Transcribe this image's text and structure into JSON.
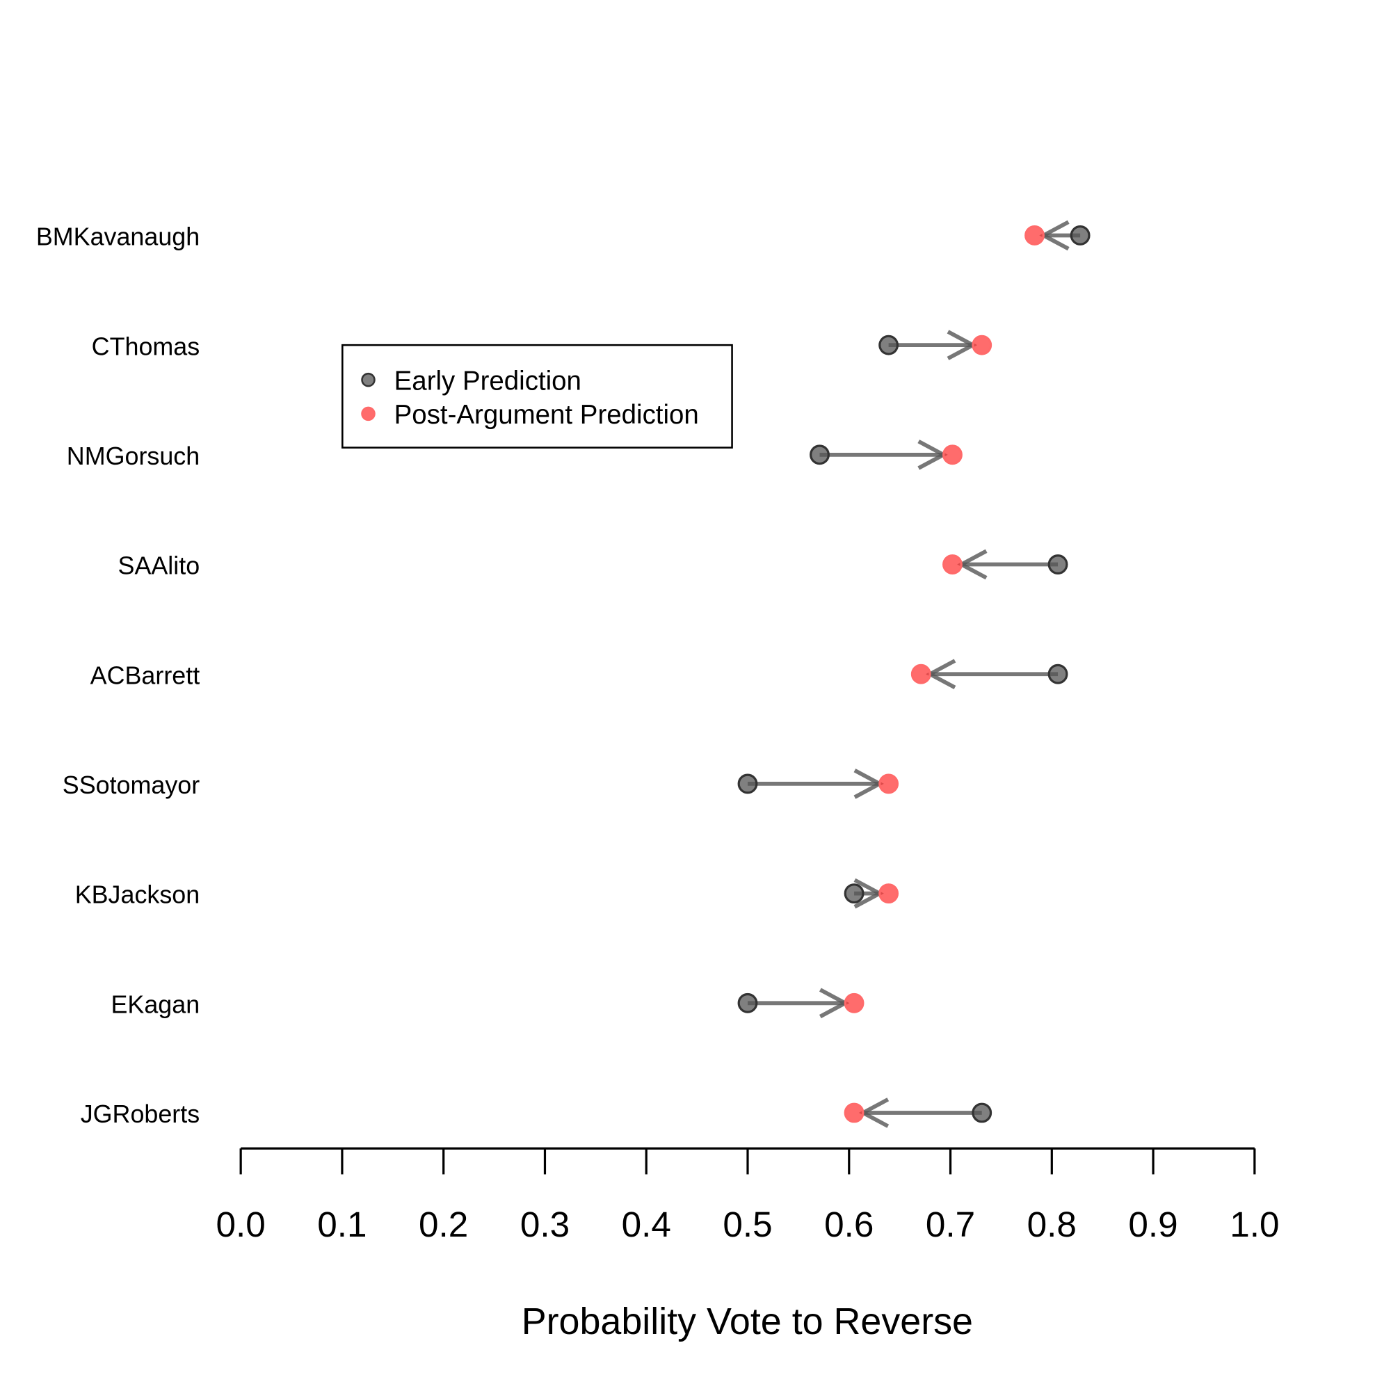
{
  "chart_data": {
    "type": "scatter",
    "subtype": "dot-arrow",
    "title": "",
    "xlabel": "Probability Vote to Reverse",
    "ylabel": "",
    "xlim": [
      0,
      1
    ],
    "xticks": [
      "0.0",
      "0.1",
      "0.2",
      "0.3",
      "0.4",
      "0.5",
      "0.6",
      "0.7",
      "0.8",
      "0.9",
      "1.0"
    ],
    "categories": [
      "BMKavanaugh",
      "CThomas",
      "NMGorsuch",
      "SAAlito",
      "ACBarrett",
      "SSotomayor",
      "KBJackson",
      "EKagan",
      "JGRoberts"
    ],
    "series": [
      {
        "name": "Early Prediction",
        "color": "#555555",
        "values": [
          0.828,
          0.639,
          0.571,
          0.806,
          0.806,
          0.5,
          0.605,
          0.5,
          0.731
        ]
      },
      {
        "name": "Post-Argument Prediction",
        "color": "#ff3b3b",
        "values": [
          0.783,
          0.731,
          0.702,
          0.702,
          0.671,
          0.639,
          0.639,
          0.605,
          0.605
        ]
      }
    ],
    "legend": {
      "placement": "top-left",
      "entries": [
        "Early Prediction",
        "Post-Argument Prediction"
      ]
    },
    "grid": false
  }
}
